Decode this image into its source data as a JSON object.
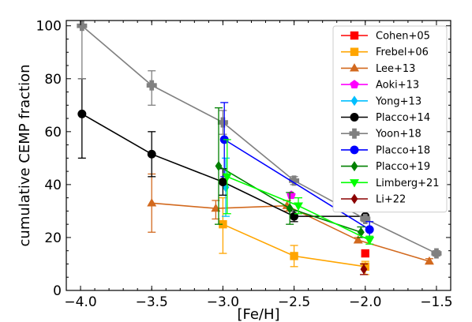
{
  "chart_data": {
    "type": "line",
    "xlabel": "[Fe/H]",
    "ylabel": "cumulative CEMP fraction",
    "xlim": [
      -4.1,
      -1.4
    ],
    "ylim": [
      0,
      102
    ],
    "xticks": [
      -4.0,
      -3.5,
      -3.0,
      -2.5,
      -2.0,
      -1.5
    ],
    "xtick_labels": [
      "−4.0",
      "−3.5",
      "−3.0",
      "−2.5",
      "−2.0",
      "−1.5"
    ],
    "yticks": [
      0,
      20,
      40,
      60,
      80,
      100
    ],
    "ytick_labels": [
      "0",
      "20",
      "40",
      "60",
      "80",
      "100"
    ],
    "grid": false,
    "legend_position": "top-right",
    "series": [
      {
        "name": "Cohen+05",
        "color": "#ff0000",
        "marker": "square",
        "points": [
          {
            "x": -2.0,
            "y": 14,
            "err": [
              0,
              0
            ]
          }
        ]
      },
      {
        "name": "Frebel+06",
        "color": "#ffa500",
        "marker": "square",
        "points": [
          {
            "x": -3.0,
            "y": 25,
            "err": [
              11,
              10
            ]
          },
          {
            "x": -2.5,
            "y": 13,
            "err": [
              4,
              4
            ]
          },
          {
            "x": -2.0,
            "y": 9,
            "err": [
              3,
              2
            ]
          }
        ]
      },
      {
        "name": "Lee+13",
        "color": "#d2691e",
        "marker": "triangle",
        "points": [
          {
            "x": -3.5,
            "y": 33,
            "err": [
              11,
              11
            ]
          },
          {
            "x": -3.05,
            "y": 31,
            "err": [
              4,
              3
            ]
          },
          {
            "x": -2.55,
            "y": 32,
            "err": [
              2,
              2
            ]
          },
          {
            "x": -2.05,
            "y": 19,
            "err": [
              1,
              1
            ]
          },
          {
            "x": -1.55,
            "y": 11,
            "err": [
              1,
              1
            ]
          }
        ]
      },
      {
        "name": "Aoki+13",
        "color": "#ff00ff",
        "marker": "pentagon",
        "points": [
          {
            "x": -2.52,
            "y": 36,
            "err": [
              0,
              0
            ]
          }
        ]
      },
      {
        "name": "Yong+13",
        "color": "#00bfff",
        "marker": "diamond",
        "points": [
          {
            "x": -2.98,
            "y": 39,
            "err": [
              11,
              11
            ]
          }
        ]
      },
      {
        "name": "Placco+14",
        "color": "#000000",
        "marker": "circle",
        "points": [
          {
            "x": -3.99,
            "y": 66.7,
            "err": [
              16.7,
              13.3
            ]
          },
          {
            "x": -3.5,
            "y": 51.5,
            "err": [
              8.5,
              8.5
            ]
          },
          {
            "x": -3.0,
            "y": 41,
            "err": [
              5,
              5
            ]
          },
          {
            "x": -2.5,
            "y": 28,
            "err": [
              2,
              2
            ]
          },
          {
            "x": -2.0,
            "y": 28,
            "err": [
              2,
              2
            ]
          }
        ]
      },
      {
        "name": "Yoon+18",
        "color": "#808080",
        "marker": "plus",
        "points": [
          {
            "x": -3.99,
            "y": 100,
            "err": [
              20,
              0
            ]
          },
          {
            "x": -3.5,
            "y": 77.5,
            "err": [
              7.5,
              5.5
            ]
          },
          {
            "x": -3.0,
            "y": 63.5,
            "err": [
              4.5,
              4.5
            ]
          },
          {
            "x": -2.5,
            "y": 41.5,
            "err": [
              1.5,
              1.5
            ]
          },
          {
            "x": -2.0,
            "y": 27,
            "err": [
              1,
              1
            ]
          },
          {
            "x": -1.5,
            "y": 14,
            "err": [
              1,
              1
            ]
          }
        ]
      },
      {
        "name": "Placco+18",
        "color": "#0000ff",
        "marker": "circle",
        "points": [
          {
            "x": -2.99,
            "y": 57,
            "err": [
              14,
              14
            ]
          },
          {
            "x": -1.97,
            "y": 23,
            "err": [
              3,
              3
            ]
          }
        ]
      },
      {
        "name": "Placco+19",
        "color": "#008000",
        "marker": "diamond",
        "points": [
          {
            "x": -3.03,
            "y": 47,
            "err": [
              22,
              22
            ]
          },
          {
            "x": -2.53,
            "y": 31,
            "err": [
              6,
              6
            ]
          },
          {
            "x": -2.03,
            "y": 22,
            "err": [
              2,
              2
            ]
          }
        ]
      },
      {
        "name": "Limberg+21",
        "color": "#00ff00",
        "marker": "triangle-down",
        "points": [
          {
            "x": -2.97,
            "y": 43,
            "err": [
              14,
              14
            ]
          },
          {
            "x": -2.47,
            "y": 32,
            "err": [
              3,
              3
            ]
          },
          {
            "x": -1.97,
            "y": 19,
            "err": [
              1.5,
              1.5
            ]
          }
        ]
      },
      {
        "name": "Li+22",
        "color": "#8b0000",
        "marker": "diamond",
        "points": [
          {
            "x": -2.01,
            "y": 8,
            "err": [
              2,
              2
            ]
          }
        ]
      }
    ]
  }
}
